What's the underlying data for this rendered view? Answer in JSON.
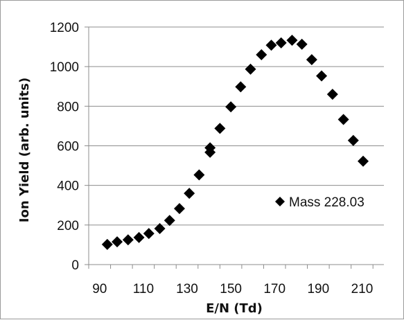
{
  "chart_data": {
    "type": "scatter",
    "title": "",
    "xlabel": "E/N (Td)",
    "ylabel": "Ion Yield (arb. units)",
    "xlim": [
      85,
      220
    ],
    "ylim": [
      0,
      1200
    ],
    "x_ticks": [
      90,
      110,
      130,
      150,
      170,
      190,
      210
    ],
    "y_ticks": [
      0,
      200,
      400,
      600,
      800,
      1000,
      1200
    ],
    "x_tick_labels": [
      "90",
      "110",
      "130",
      "150",
      "170",
      "190",
      "210"
    ],
    "y_tick_labels": [
      "0",
      "200",
      "400",
      "600",
      "800",
      "1000",
      "1200"
    ],
    "grid": "horizontal",
    "legend_position": "right",
    "marker": "diamond",
    "marker_color": "#000000",
    "series": [
      {
        "name": "Mass 228.03",
        "x": [
          93.5,
          98,
          103,
          108,
          112.5,
          117.5,
          122,
          126.5,
          131,
          135.5,
          140.5,
          140.5,
          145,
          150,
          154.5,
          159,
          164,
          168.5,
          173,
          178,
          182.5,
          187,
          191.5,
          196.5,
          201.5,
          206,
          210.5
        ],
        "y": [
          102,
          115,
          125,
          137,
          157,
          182,
          223,
          283,
          360,
          453,
          590,
          567,
          688,
          797,
          898,
          987,
          1060,
          1108,
          1120,
          1133,
          1113,
          1035,
          953,
          860,
          733,
          627,
          522
        ]
      }
    ]
  }
}
